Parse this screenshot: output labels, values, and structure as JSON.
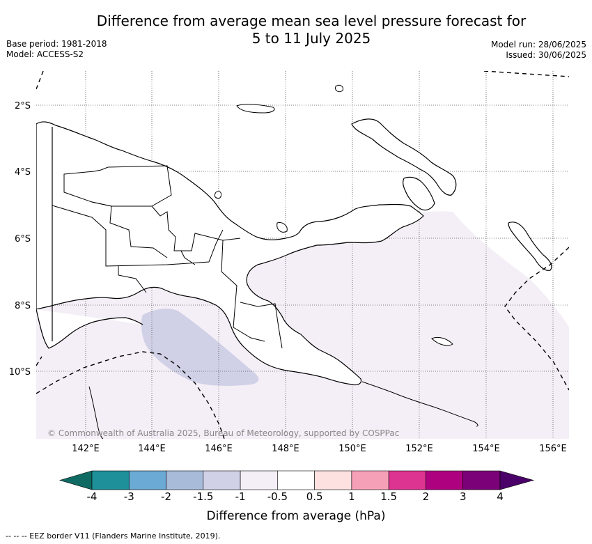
{
  "title_line1": "Difference from average mean sea level pressure forecast for",
  "title_line2": "5 to 11 July 2025",
  "base_period": "Base period: 1981-2018",
  "model": "Model: ACCESS-S2",
  "model_run": "Model run: 28/06/2025",
  "issued": "Issued: 30/06/2025",
  "lat_ticks": [
    "2°S",
    "4°S",
    "6°S",
    "8°S",
    "10°S"
  ],
  "lon_ticks": [
    "142°E",
    "144°E",
    "146°E",
    "148°E",
    "150°E",
    "152°E",
    "154°E",
    "156°E"
  ],
  "copyright": "© Commonwealth of Australia 2025, Bureau of Meteorology, supported by COSPPac",
  "colorbar": {
    "title": "Difference from average (hPa)",
    "labels": [
      "-4",
      "-3",
      "-2",
      "-1.5",
      "-1",
      "-0.5",
      "0.5",
      "1",
      "1.5",
      "2",
      "3",
      "4"
    ],
    "colors": [
      "#0e6a62",
      "#1e9099",
      "#6aaad4",
      "#a8bcda",
      "#d0d0e6",
      "#f4eef6",
      "#ffffff",
      "#fde0e0",
      "#f6a0b8",
      "#dc3490",
      "#ae0180",
      "#7a0177",
      "#4a0068"
    ]
  },
  "footnote": "--  --  -- EEZ border V11 (Flanders Marine Institute, 2019)."
}
